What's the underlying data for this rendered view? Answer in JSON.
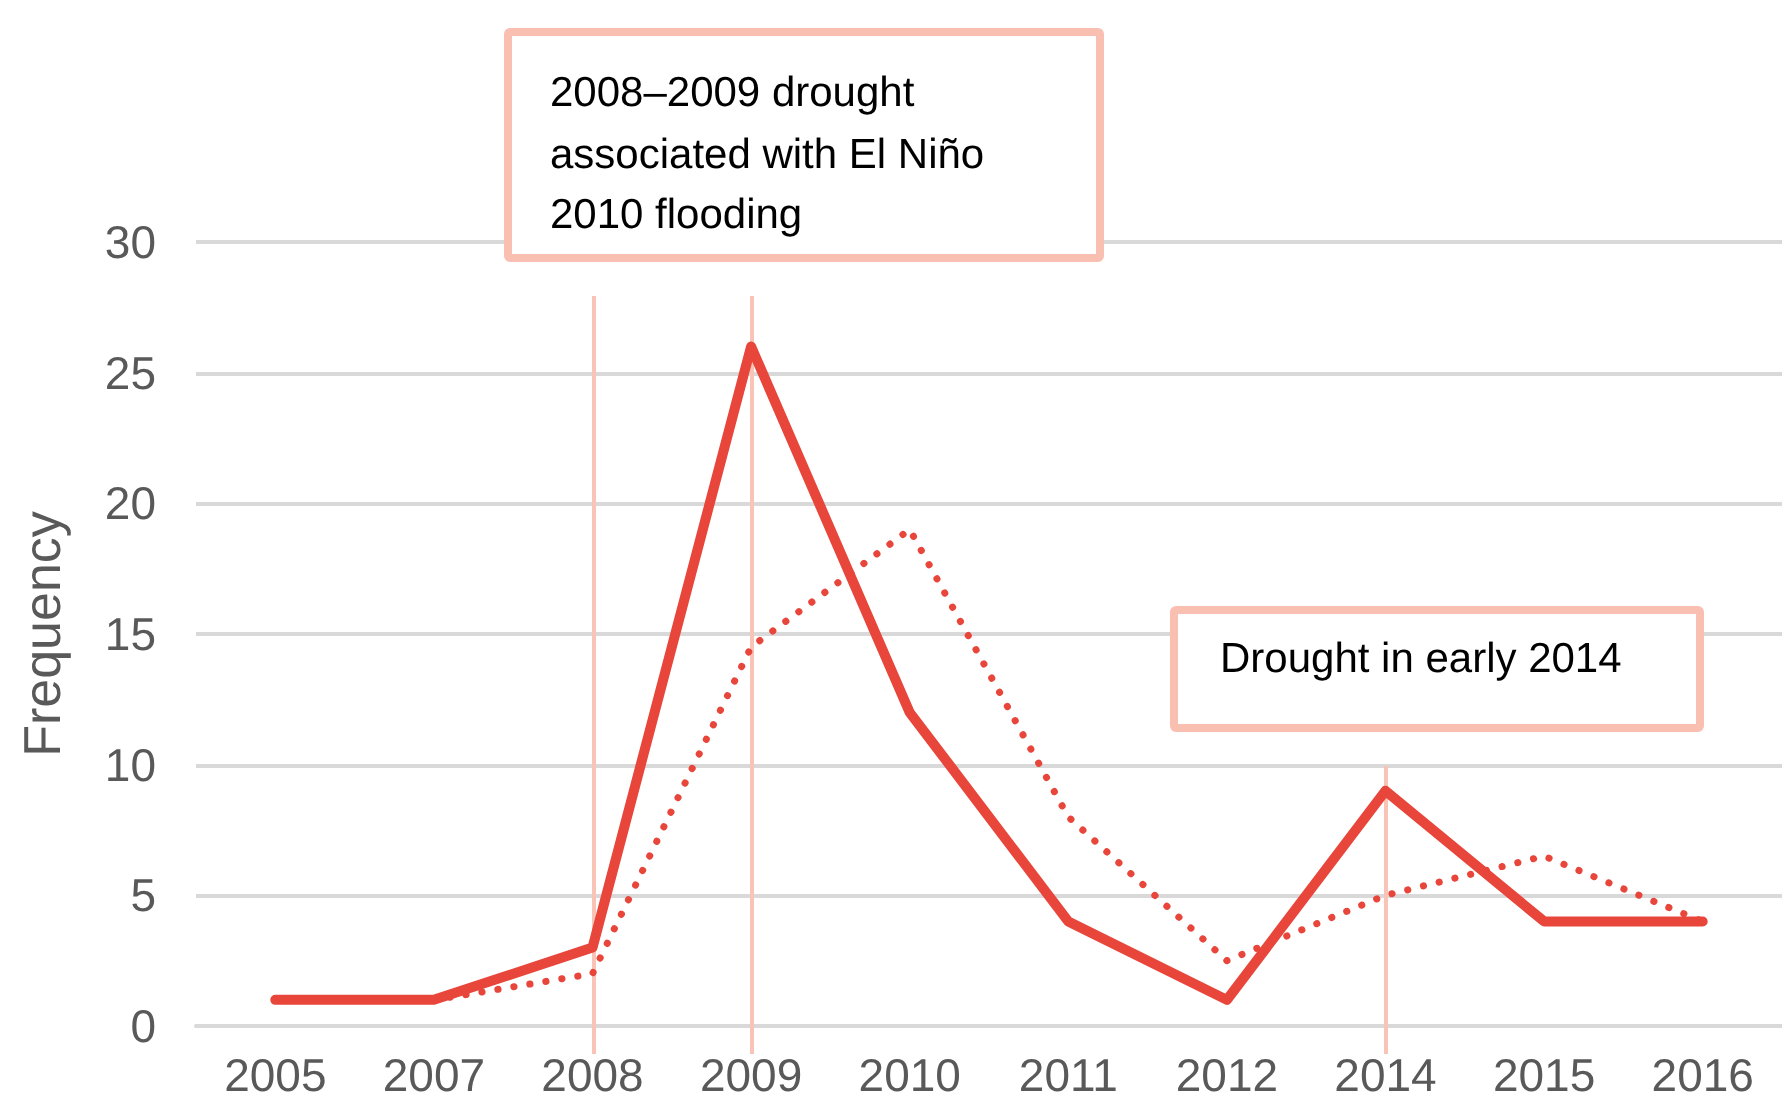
{
  "chart_data": {
    "type": "line",
    "ylabel": "Frequency",
    "categories": [
      "2005",
      "2007",
      "2008",
      "2009",
      "2010",
      "2011",
      "2012",
      "2014",
      "2015",
      "2016"
    ],
    "series": [
      {
        "color": "#e8453b",
        "line_style": "solid",
        "values": [
          1,
          1,
          3,
          26,
          12,
          4,
          1,
          9,
          4,
          4
        ]
      },
      {
        "color": "#e8453b",
        "line_style": "dotted",
        "values": [
          null,
          1,
          2,
          14.5,
          19,
          8,
          2.5,
          5,
          6.5,
          4
        ]
      }
    ],
    "ylim": [
      0,
      30
    ],
    "yticks": [
      0,
      5,
      10,
      15,
      20,
      25,
      30
    ],
    "ref_lines": [
      {
        "axis": "x",
        "value": "2008",
        "color": "#f9c3b6"
      },
      {
        "axis": "x",
        "value": "2009",
        "color": "#f9c3b6"
      },
      {
        "axis": "x",
        "value": "2014",
        "color": "#f9c3b6"
      }
    ],
    "annotations": [
      "2008–2009 drought\nassociated with El Niño\n2010 flooding",
      "Drought in early 2014"
    ],
    "grid": "y",
    "marker": "none"
  }
}
